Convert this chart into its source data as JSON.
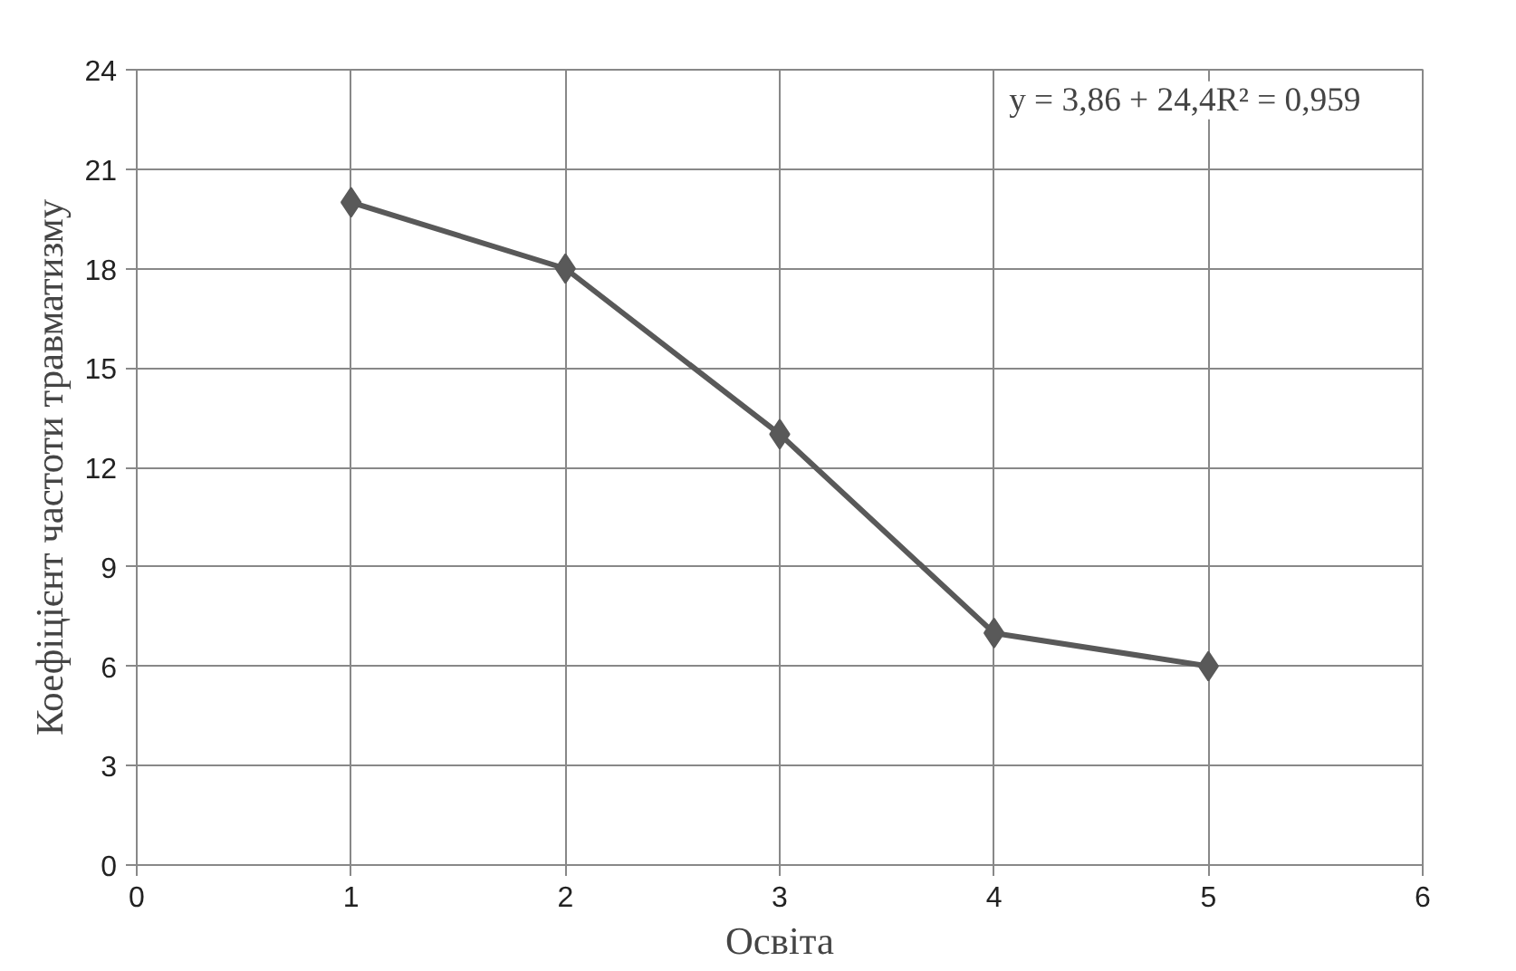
{
  "chart_data": {
    "type": "line",
    "xlabel": "Освіта",
    "ylabel": "Коефіцієнт частоти травматизму",
    "x": [
      1,
      2,
      3,
      4,
      5
    ],
    "series": [
      {
        "color": "#595959",
        "values": [
          20,
          18,
          13,
          7,
          6
        ]
      }
    ],
    "xlim": [
      0,
      6
    ],
    "xticks": [
      0,
      1,
      2,
      3,
      4,
      5,
      6
    ],
    "ylim": [
      0,
      24
    ],
    "yticks": [
      0,
      3,
      6,
      9,
      12,
      15,
      18,
      21,
      24
    ],
    "grid": true,
    "marker": "diamond",
    "line_style": "solid",
    "annotations": [
      "y = 3,86  + 24,4R² = 0,959"
    ]
  }
}
